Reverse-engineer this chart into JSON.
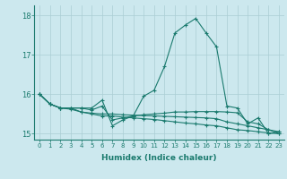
{
  "xlabel": "Humidex (Indice chaleur)",
  "bg_color": "#cce8ee",
  "line_color": "#1a7a6e",
  "grid_color": "#aacdd4",
  "xlim": [
    -0.5,
    23.5
  ],
  "ylim": [
    14.85,
    18.25
  ],
  "yticks": [
    15,
    16,
    17,
    18
  ],
  "xticks": [
    0,
    1,
    2,
    3,
    4,
    5,
    6,
    7,
    8,
    9,
    10,
    11,
    12,
    13,
    14,
    15,
    16,
    17,
    18,
    19,
    20,
    21,
    22,
    23
  ],
  "series": [
    [
      16.0,
      15.75,
      15.65,
      15.65,
      15.65,
      15.65,
      15.85,
      15.2,
      15.35,
      15.45,
      15.95,
      16.1,
      16.7,
      17.55,
      17.75,
      17.92,
      17.55,
      17.2,
      15.7,
      15.65,
      15.25,
      15.4,
      15.0,
      15.05
    ],
    [
      16.0,
      15.75,
      15.65,
      15.65,
      15.65,
      15.6,
      15.7,
      15.35,
      15.4,
      15.45,
      15.48,
      15.5,
      15.52,
      15.55,
      15.55,
      15.56,
      15.56,
      15.56,
      15.55,
      15.53,
      15.3,
      15.25,
      15.1,
      15.05
    ],
    [
      16.0,
      15.75,
      15.65,
      15.65,
      15.55,
      15.52,
      15.5,
      15.5,
      15.48,
      15.47,
      15.46,
      15.45,
      15.44,
      15.43,
      15.42,
      15.41,
      15.4,
      15.38,
      15.3,
      15.25,
      15.2,
      15.15,
      15.1,
      15.0
    ],
    [
      16.0,
      15.75,
      15.65,
      15.62,
      15.55,
      15.5,
      15.45,
      15.45,
      15.42,
      15.4,
      15.38,
      15.36,
      15.33,
      15.3,
      15.27,
      15.25,
      15.22,
      15.2,
      15.15,
      15.1,
      15.08,
      15.05,
      15.02,
      15.0
    ]
  ]
}
